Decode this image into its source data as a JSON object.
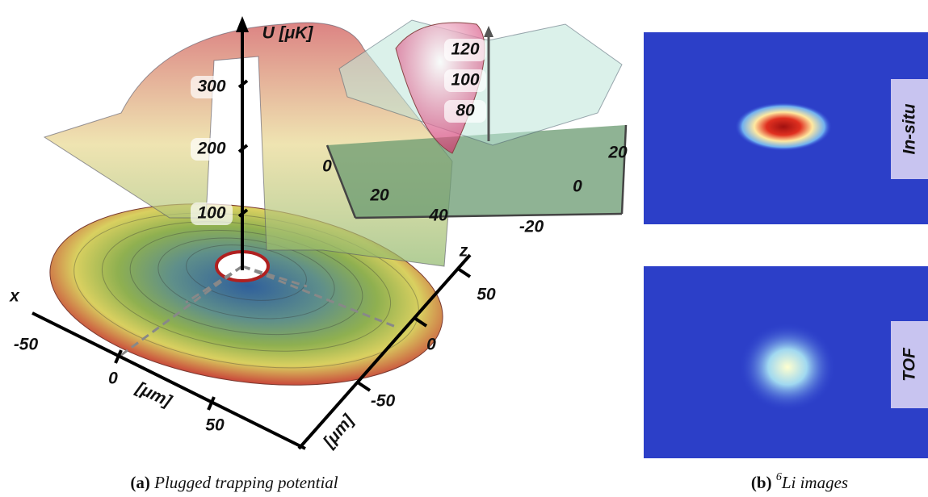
{
  "panel_a": {
    "potential_axis": {
      "label": "U [μK]",
      "ticks": [
        100,
        200,
        300
      ]
    },
    "x_axis": {
      "label": "x",
      "ticks": [
        -50,
        0,
        50
      ],
      "unit": "[μm]"
    },
    "z_axis": {
      "label": "z",
      "ticks": [
        50,
        0,
        -50
      ],
      "unit": "[μm]"
    },
    "inset": {
      "u_ticks": [
        80,
        100,
        120
      ],
      "x_ticks": [
        0,
        20,
        40
      ],
      "z_ticks": [
        20,
        0,
        -20
      ]
    },
    "caption": {
      "label": "(a)",
      "text": "Plugged trapping potential"
    }
  },
  "panel_b": {
    "images": [
      {
        "label": "In-situ"
      },
      {
        "label": "TOF"
      }
    ],
    "caption": {
      "label": "(b)",
      "superscript": "6",
      "text": "Li images"
    }
  }
}
